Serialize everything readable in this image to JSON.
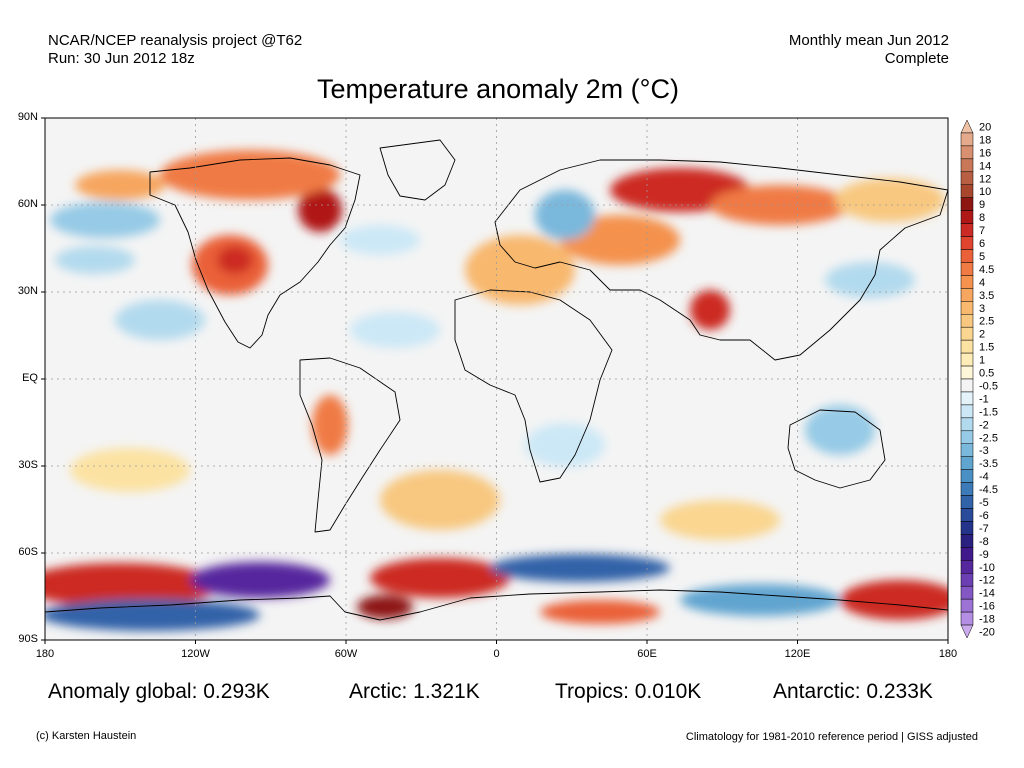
{
  "header": {
    "left_line1": "NCAR/NCEP reanalysis project @T62",
    "left_line2": "Run: 30 Jun 2012 18z",
    "right_line1": "Monthly mean Jun 2012",
    "right_line2": "Complete"
  },
  "title": "Temperature anomaly 2m (°C)",
  "axes": {
    "lat_labels": [
      "90N",
      "60N",
      "30N",
      "EQ",
      "30S",
      "60S",
      "90S"
    ],
    "lon_labels": [
      "180",
      "120W",
      "60W",
      "0",
      "60E",
      "120E",
      "180"
    ]
  },
  "colorbar": {
    "levels": [
      "20",
      "18",
      "16",
      "14",
      "12",
      "10",
      "9",
      "8",
      "7",
      "6",
      "5",
      "4.5",
      "4",
      "3.5",
      "3",
      "2.5",
      "2",
      "1.5",
      "1",
      "0.5",
      "-0.5",
      "-1",
      "-1.5",
      "-2",
      "-2.5",
      "-3",
      "-3.5",
      "-4",
      "-4.5",
      "-5",
      "-6",
      "-7",
      "-8",
      "-9",
      "-10",
      "-12",
      "-14",
      "-16",
      "-18",
      "-20"
    ],
    "colors": [
      "#eec0a4",
      "#e5aa8c",
      "#d99070",
      "#c87858",
      "#b85e42",
      "#a8462e",
      "#8e1612",
      "#b01818",
      "#cc2a24",
      "#e0442e",
      "#ea6038",
      "#f07a44",
      "#f4924e",
      "#f6a65e",
      "#f8b86e",
      "#f8c880",
      "#fad690",
      "#fce2a2",
      "#fdecb8",
      "#fef6d8",
      "#f4f4f4",
      "#e4f2fa",
      "#cce8f6",
      "#b2daee",
      "#96cae6",
      "#7ab8dc",
      "#60a4d0",
      "#4a90c4",
      "#3c7ab8",
      "#3262a8",
      "#2a4a9a",
      "#24348a",
      "#2a2080",
      "#401a8c",
      "#56289e",
      "#6c40b2",
      "#8458c4",
      "#9c72d4",
      "#b48ee2",
      "#ccaaee"
    ]
  },
  "stats": {
    "global": "Anomaly global: 0.293K",
    "arctic": "Arctic: 1.321K",
    "tropics": "Tropics: 0.010K",
    "antarctic": "Antarctic: 0.233K"
  },
  "footer": {
    "left": "(c) Karsten Haustein",
    "right": "Climatology for 1981-2010 reference period | GISS adjusted"
  }
}
